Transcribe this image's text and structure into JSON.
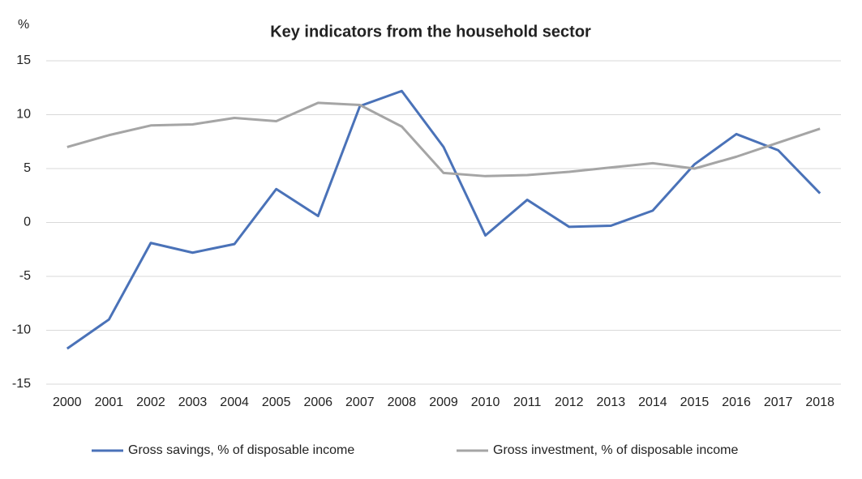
{
  "chart_data": {
    "type": "line",
    "title": "Key indicators from the household sector",
    "y_unit": "%",
    "categories": [
      "2000",
      "2001",
      "2002",
      "2003",
      "2004",
      "2005",
      "2006",
      "2007",
      "2008",
      "2009",
      "2010",
      "2011",
      "2012",
      "2013",
      "2014",
      "2015",
      "2016",
      "2017",
      "2018"
    ],
    "series": [
      {
        "name": "Gross savings, % of disposable income",
        "color": "#4a72b8",
        "values": [
          -11.7,
          -9.0,
          -1.9,
          -2.8,
          -2.0,
          3.1,
          0.6,
          10.8,
          12.2,
          7.0,
          -1.2,
          2.1,
          -0.4,
          -0.3,
          1.1,
          5.4,
          8.2,
          6.7,
          2.7
        ]
      },
      {
        "name": "Gross investment, % of disposable income",
        "color": "#a5a5a5",
        "values": [
          7.0,
          8.1,
          9.0,
          9.1,
          9.7,
          9.4,
          11.1,
          10.9,
          8.9,
          4.6,
          4.3,
          4.4,
          4.7,
          5.1,
          5.5,
          5.0,
          6.1,
          7.4,
          8.7
        ]
      }
    ],
    "ylim": [
      -15,
      15
    ],
    "yticks": [
      -15,
      -10,
      -5,
      0,
      5,
      10,
      15
    ],
    "grid": true
  }
}
